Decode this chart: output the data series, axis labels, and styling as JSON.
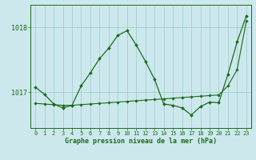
{
  "xlabel_label": "Graphe pression niveau de la mer (hPa)",
  "bg_color": "#cce8ed",
  "grid_color": "#99cccc",
  "line_color": "#1a6b1a",
  "x_ticks": [
    0,
    1,
    2,
    3,
    4,
    5,
    6,
    7,
    8,
    9,
    10,
    11,
    12,
    13,
    14,
    15,
    16,
    17,
    18,
    19,
    20,
    21,
    22,
    23
  ],
  "y_ticks": [
    1017,
    1018
  ],
  "ylim": [
    1016.45,
    1018.35
  ],
  "xlim": [
    -0.5,
    23.5
  ],
  "series1_x": [
    0,
    1,
    2,
    3,
    4,
    5,
    6,
    7,
    8,
    9,
    10,
    11,
    12,
    13,
    14,
    15,
    16,
    17,
    18,
    19,
    20,
    21,
    22,
    23
  ],
  "series1_y": [
    1017.08,
    1016.97,
    1016.82,
    1016.76,
    1016.8,
    1017.1,
    1017.3,
    1017.52,
    1017.68,
    1017.88,
    1017.95,
    1017.73,
    1017.48,
    1017.2,
    1016.82,
    1016.8,
    1016.76,
    1016.65,
    1016.78,
    1016.85,
    1016.84,
    1017.28,
    1017.78,
    1018.18
  ],
  "series1_markers": [
    0,
    1,
    2,
    3,
    4,
    5,
    6,
    7,
    8,
    9,
    10,
    11,
    12,
    13,
    14,
    15,
    16,
    17,
    18,
    19,
    20,
    21,
    22,
    23
  ],
  "series2_x": [
    0,
    1,
    2,
    3,
    4,
    5,
    6,
    7,
    8,
    9,
    10,
    11,
    12,
    13,
    14,
    15,
    16,
    17,
    18,
    19,
    20,
    21,
    22,
    23
  ],
  "series2_y": [
    1016.83,
    1016.82,
    1016.81,
    1016.8,
    1016.8,
    1016.81,
    1016.82,
    1016.83,
    1016.84,
    1016.85,
    1016.86,
    1016.87,
    1016.88,
    1016.89,
    1016.9,
    1016.91,
    1016.92,
    1016.93,
    1016.94,
    1016.95,
    1016.96,
    1017.1,
    1017.35,
    1018.1
  ]
}
